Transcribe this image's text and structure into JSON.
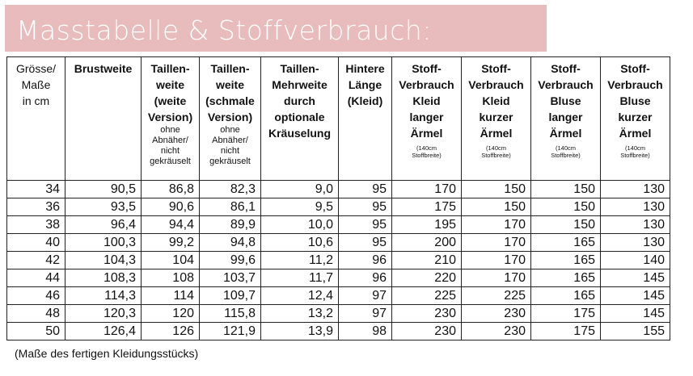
{
  "banner": {
    "title": "Masstabelle & Stoffverbrauch:"
  },
  "table": {
    "headers": [
      {
        "main": [
          "Grösse/",
          "Maße",
          "in cm"
        ],
        "small": [],
        "tiny": []
      },
      {
        "main": [
          "Brustweite"
        ],
        "small": [],
        "tiny": []
      },
      {
        "main": [
          "Taillen-",
          "weite",
          "(weite",
          "Version)"
        ],
        "small": [
          "ohne",
          "Abnäher/",
          "nicht",
          "gekräuselt"
        ],
        "tiny": []
      },
      {
        "main": [
          "Taillen-",
          "weite",
          "(schmale",
          "Version)"
        ],
        "small": [
          "ohne",
          "Abnäher/",
          "nicht",
          "gekräuselt"
        ],
        "tiny": []
      },
      {
        "main": [
          "Taillen-",
          "Mehrweite",
          "durch",
          "optionale",
          "Kräuselung"
        ],
        "small": [],
        "tiny": []
      },
      {
        "main": [
          "Hintere",
          "Länge",
          "(Kleid)"
        ],
        "small": [],
        "tiny": []
      },
      {
        "main": [
          "Stoff-",
          "Verbrauch",
          "Kleid",
          "langer",
          "Ärmel"
        ],
        "small": [],
        "tiny": [
          "(140cm",
          "Stoffbreite)"
        ]
      },
      {
        "main": [
          "Stoff-",
          "Verbrauch",
          "Kleid",
          "kurzer",
          "Ärmel"
        ],
        "small": [],
        "tiny": [
          "(140cm",
          "Stoffbreite)"
        ]
      },
      {
        "main": [
          "Stoff-",
          "Verbrauch",
          "Bluse",
          "langer",
          "Ärmel"
        ],
        "small": [],
        "tiny": [
          "(140cm",
          "Stoffbreite)"
        ]
      },
      {
        "main": [
          "Stoff-",
          "Verbrauch",
          "Bluse",
          "kurzer",
          "Ärmel"
        ],
        "small": [],
        "tiny": [
          "(140cm",
          "Stoffbreite)"
        ]
      }
    ],
    "rows": [
      [
        "34",
        "90,5",
        "86,8",
        "82,3",
        "9,0",
        "95",
        "170",
        "150",
        "150",
        "130"
      ],
      [
        "36",
        "93,5",
        "90,6",
        "86,1",
        "9,5",
        "95",
        "175",
        "150",
        "150",
        "130"
      ],
      [
        "38",
        "96,4",
        "94,4",
        "89,9",
        "10,0",
        "95",
        "195",
        "170",
        "150",
        "130"
      ],
      [
        "40",
        "100,3",
        "99,2",
        "94,8",
        "10,6",
        "95",
        "200",
        "170",
        "165",
        "130"
      ],
      [
        "42",
        "104,3",
        "104",
        "99,6",
        "11,2",
        "96",
        "210",
        "170",
        "165",
        "140"
      ],
      [
        "44",
        "108,3",
        "108",
        "103,7",
        "11,7",
        "96",
        "220",
        "170",
        "165",
        "145"
      ],
      [
        "46",
        "114,3",
        "114",
        "109,7",
        "12,4",
        "97",
        "225",
        "225",
        "165",
        "145"
      ],
      [
        "48",
        "120,3",
        "120",
        "115,8",
        "13,2",
        "97",
        "230",
        "230",
        "175",
        "145"
      ],
      [
        "50",
        "126,4",
        "126",
        "121,9",
        "13,9",
        "98",
        "230",
        "230",
        "175",
        "155"
      ]
    ]
  },
  "footnote": "(Maße des fertigen Kleidungsstücks)"
}
